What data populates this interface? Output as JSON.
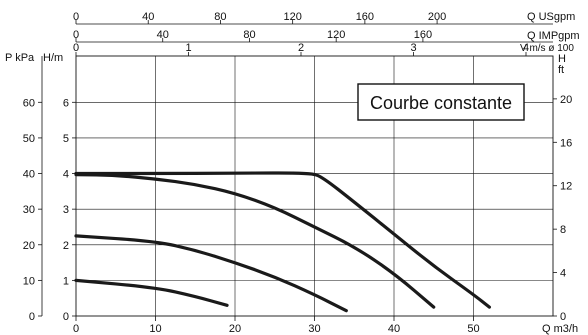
{
  "chart_data": {
    "type": "line",
    "title": "",
    "annotation": "Courbe constante",
    "axes": {
      "bottom": {
        "label": "Q m3/h",
        "range": [
          0,
          60
        ],
        "ticks": [
          0,
          10,
          20,
          30,
          40,
          50
        ]
      },
      "top_usgpm": {
        "label": "Q USgpm",
        "range": [
          0,
          264.2
        ],
        "ticks": [
          0,
          40,
          80,
          120,
          160,
          200
        ]
      },
      "top_impgpm": {
        "label": "Q IMPgpm",
        "range": [
          0,
          220
        ],
        "ticks": [
          0,
          40,
          80,
          120,
          160
        ]
      },
      "top_velocity": {
        "label": "V m/s ø 100",
        "range": [
          0,
          4.24
        ],
        "ticks": [
          0,
          1,
          2,
          3,
          4
        ]
      },
      "left_kpa": {
        "label": "P kPa",
        "range": [
          0,
          73
        ],
        "ticks": [
          0,
          10,
          20,
          30,
          40,
          50,
          60
        ]
      },
      "left_m": {
        "label": "H/m",
        "range": [
          0,
          7.3
        ],
        "ticks": [
          0,
          1,
          2,
          3,
          4,
          5,
          6
        ]
      },
      "right_ft": {
        "label": "H ft",
        "range": [
          0,
          23.95
        ],
        "ticks": [
          0,
          4,
          8,
          12,
          16,
          20
        ]
      }
    },
    "grid": true,
    "series": [
      {
        "x": [
          0,
          10,
          15,
          19
        ],
        "y": [
          1.0,
          0.8,
          0.55,
          0.3
        ]
      },
      {
        "x": [
          0,
          10,
          15,
          20,
          25,
          30,
          34
        ],
        "y": [
          2.25,
          2.1,
          1.85,
          1.5,
          1.1,
          0.6,
          0.15
        ]
      },
      {
        "x": [
          0,
          5,
          10,
          15,
          20,
          25,
          30,
          35,
          40,
          45
        ],
        "y": [
          3.97,
          3.95,
          3.85,
          3.7,
          3.45,
          3.05,
          2.5,
          1.95,
          1.2,
          0.25
        ]
      },
      {
        "x": [
          0,
          10,
          20,
          29.5,
          31,
          35,
          40,
          45,
          50,
          52
        ],
        "y": [
          4.0,
          4.0,
          4.01,
          4.02,
          3.9,
          3.2,
          2.3,
          1.4,
          0.6,
          0.25
        ]
      }
    ]
  }
}
